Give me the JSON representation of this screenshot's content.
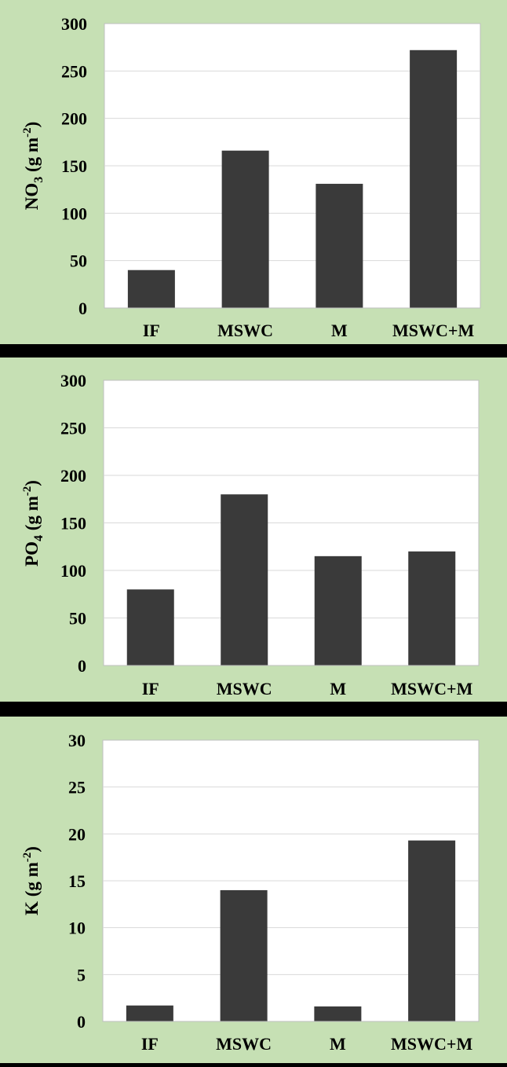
{
  "colors": {
    "background": "#c6e0b4",
    "bar": "#3a3a3a",
    "grid": "#d9d9d9",
    "separator": "#000000"
  },
  "chart_data": [
    {
      "type": "bar",
      "categories": [
        "IF",
        "MSWC",
        "M",
        "MSWC+M"
      ],
      "values": [
        40,
        166,
        131,
        272
      ],
      "ylabel_main": "NO",
      "ylabel_sub": "3",
      "ylabel_rest": " (g m",
      "ylabel_sup": "-2",
      "ylabel_end": ")",
      "ylim": [
        0,
        300
      ],
      "yticks": [
        "0",
        "50",
        "100",
        "150",
        "200",
        "250",
        "300"
      ],
      "grid": true
    },
    {
      "type": "bar",
      "categories": [
        "IF",
        "MSWC",
        "M",
        "MSWC+M"
      ],
      "values": [
        80,
        180,
        115,
        120
      ],
      "ylabel_main": "PO",
      "ylabel_sub": "4",
      "ylabel_rest": " (g m",
      "ylabel_sup": "-2",
      "ylabel_end": ")",
      "ylim": [
        0,
        300
      ],
      "yticks": [
        "0",
        "50",
        "100",
        "150",
        "200",
        "250",
        "300"
      ],
      "grid": true
    },
    {
      "type": "bar",
      "categories": [
        "IF",
        "MSWC",
        "M",
        "MSWC+M"
      ],
      "values": [
        1.7,
        14,
        1.6,
        19.3
      ],
      "ylabel_main": "K",
      "ylabel_sub": "",
      "ylabel_rest": " (g m",
      "ylabel_sup": "-2",
      "ylabel_end": ")",
      "ylim": [
        0,
        30
      ],
      "yticks": [
        "0",
        "5",
        "10",
        "15",
        "20",
        "25",
        "30"
      ],
      "grid": true
    }
  ]
}
